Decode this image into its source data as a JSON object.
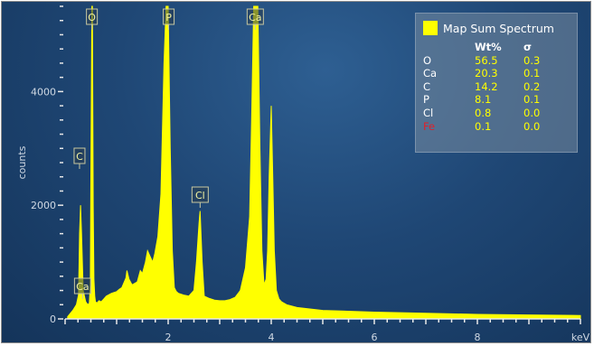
{
  "chart_data": {
    "type": "line",
    "title": "",
    "xlabel": "keV",
    "ylabel": "counts",
    "xlim": [
      0,
      10
    ],
    "ylim": [
      0,
      5500
    ],
    "x_ticks": [
      2,
      4,
      6,
      8
    ],
    "y_ticks": [
      0,
      2000,
      4000
    ],
    "series": [
      {
        "name": "Map Sum Spectrum",
        "color": "#ffff00",
        "x": [
          0.05,
          0.15,
          0.22,
          0.26,
          0.27,
          0.28,
          0.3,
          0.32,
          0.35,
          0.4,
          0.44,
          0.47,
          0.49,
          0.5,
          0.52,
          0.53,
          0.545,
          0.56,
          0.575,
          0.59,
          0.62,
          0.66,
          0.7,
          0.75,
          0.8,
          0.9,
          1.0,
          1.05,
          1.1,
          1.18,
          1.2,
          1.24,
          1.3,
          1.4,
          1.46,
          1.5,
          1.56,
          1.6,
          1.65,
          1.7,
          1.74,
          1.8,
          1.86,
          1.92,
          1.96,
          2.0,
          2.04,
          2.08,
          2.12,
          2.16,
          2.2,
          2.3,
          2.4,
          2.5,
          2.55,
          2.6,
          2.62,
          2.66,
          2.7,
          2.8,
          2.9,
          3.0,
          3.1,
          3.2,
          3.3,
          3.4,
          3.5,
          3.58,
          3.62,
          3.66,
          3.69,
          3.71,
          3.74,
          3.78,
          3.82,
          3.86,
          3.9,
          3.93,
          3.96,
          4.0,
          4.03,
          4.06,
          4.1,
          4.15,
          4.2,
          4.3,
          4.5,
          5.0,
          6.0,
          7.0,
          8.0,
          9.0,
          10.0
        ],
        "y": [
          40,
          150,
          250,
          420,
          900,
          1500,
          2000,
          1500,
          500,
          300,
          250,
          280,
          600,
          2500,
          5600,
          5600,
          2000,
          700,
          400,
          300,
          280,
          320,
          300,
          350,
          400,
          450,
          480,
          520,
          550,
          720,
          850,
          700,
          600,
          650,
          850,
          800,
          1000,
          1200,
          1100,
          1000,
          1150,
          1450,
          2200,
          4500,
          5600,
          5600,
          3000,
          1200,
          550,
          480,
          450,
          420,
          400,
          500,
          1000,
          1700,
          1900,
          1000,
          400,
          360,
          330,
          320,
          320,
          340,
          380,
          500,
          900,
          1800,
          3500,
          5600,
          5600,
          5600,
          5600,
          3000,
          1200,
          600,
          700,
          1200,
          2500,
          3750,
          2500,
          1200,
          500,
          350,
          300,
          250,
          200,
          150,
          120,
          100,
          80,
          70,
          60
        ]
      }
    ],
    "peak_labels": [
      {
        "label": "O",
        "x": 0.52
      },
      {
        "label": "P",
        "x": 2.01
      },
      {
        "label": "Ca",
        "x": 3.69
      },
      {
        "label": "C",
        "x": 0.28
      },
      {
        "label": "Cl",
        "x": 2.62
      },
      {
        "label": "Ca",
        "x": 0.34
      }
    ],
    "legend_placement": "top-right",
    "grid": false
  },
  "legend": {
    "title": "Map Sum Spectrum",
    "col_wt": "Wt%",
    "col_sigma": "σ",
    "rows": [
      {
        "element": "O",
        "wt": "56.5",
        "sigma": "0.3",
        "color": "#ffffff"
      },
      {
        "element": "Ca",
        "wt": "20.3",
        "sigma": "0.1",
        "color": "#ffffff"
      },
      {
        "element": "C",
        "wt": "14.2",
        "sigma": "0.2",
        "color": "#ffffff"
      },
      {
        "element": "P",
        "wt": "8.1",
        "sigma": "0.1",
        "color": "#ffffff"
      },
      {
        "element": "Cl",
        "wt": "0.8",
        "sigma": "0.0",
        "color": "#ffffff"
      },
      {
        "element": "Fe",
        "wt": "0.1",
        "sigma": "0.0",
        "color": "#e0202a"
      }
    ]
  },
  "colors": {
    "spectrum": "#ffff00",
    "background": "#1f4775"
  }
}
